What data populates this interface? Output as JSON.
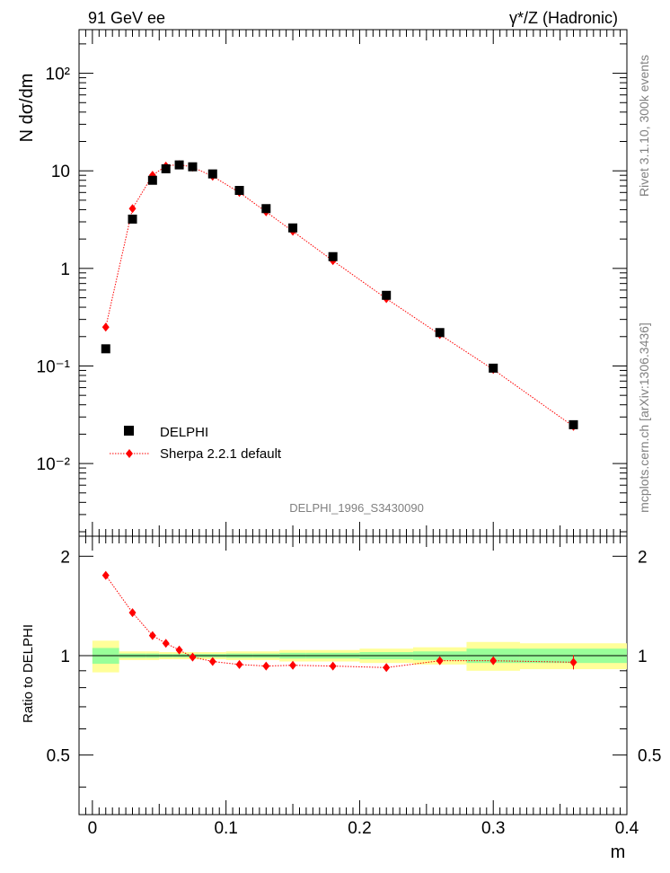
{
  "header": {
    "left": "91 GeV ee",
    "right": "γ*/Z (Hadronic)"
  },
  "side_text": {
    "rivet": "Rivet 3.1.10,  300k events",
    "mcplots": "mcplots.cern.ch [arXiv:1306.3436]"
  },
  "watermark": "DELPHI_1996_S3430090",
  "legend": {
    "data_label": "DELPHI",
    "mc_label": "Sherpa 2.2.1 default"
  },
  "colors": {
    "data": "#000000",
    "mc": "#ff0000",
    "band_inner": "#99ff99",
    "band_outer": "#ffff99"
  },
  "chart_data": [
    {
      "type": "scatter",
      "panel": "main",
      "ylabel": "N dσ/dm",
      "yscale": "log",
      "xlim": [
        -0.01,
        0.4
      ],
      "ylim": [
        0.0018,
        280
      ],
      "y_ticks": [
        {
          "v": 100,
          "label": "10²"
        },
        {
          "v": 10,
          "label": "10"
        },
        {
          "v": 1,
          "label": "1"
        },
        {
          "v": 0.1,
          "label": "10⁻¹"
        },
        {
          "v": 0.01,
          "label": "10⁻²"
        }
      ],
      "series": [
        {
          "name": "DELPHI",
          "x": [
            0.01,
            0.03,
            0.045,
            0.055,
            0.065,
            0.075,
            0.09,
            0.11,
            0.13,
            0.15,
            0.18,
            0.22,
            0.26,
            0.3,
            0.36
          ],
          "y": [
            0.15,
            3.2,
            8.0,
            10.5,
            11.5,
            11.0,
            9.3,
            6.3,
            4.1,
            2.6,
            1.32,
            0.53,
            0.22,
            0.095,
            0.025
          ]
        },
        {
          "name": "Sherpa 2.2.1 default",
          "x": [
            0.01,
            0.03,
            0.045,
            0.055,
            0.065,
            0.075,
            0.09,
            0.11,
            0.13,
            0.15,
            0.18,
            0.22,
            0.26,
            0.3,
            0.36
          ],
          "y": [
            0.25,
            4.1,
            9.0,
            11.2,
            11.6,
            10.9,
            8.8,
            6.0,
            3.8,
            2.4,
            1.2,
            0.49,
            0.21,
            0.092,
            0.024
          ]
        }
      ]
    },
    {
      "type": "scatter",
      "panel": "ratio",
      "ylabel": "Ratio to DELPHI",
      "xlabel": "m",
      "xlim": [
        -0.01,
        0.4
      ],
      "ylim": [
        0.33,
        2.3
      ],
      "x_ticks": [
        "0",
        "0.1",
        "0.2",
        "0.3",
        "0.4"
      ],
      "y_ticks": [
        "0.5",
        "1",
        "2"
      ],
      "bands": {
        "bin_edges": [
          0,
          0.02,
          0.04,
          0.05,
          0.06,
          0.07,
          0.08,
          0.1,
          0.12,
          0.14,
          0.16,
          0.2,
          0.24,
          0.28,
          0.32,
          0.4
        ],
        "inner_half": [
          0.055,
          0.015,
          0.015,
          0.012,
          0.012,
          0.012,
          0.012,
          0.015,
          0.015,
          0.02,
          0.02,
          0.025,
          0.03,
          0.05,
          0.05
        ],
        "outer_half": [
          0.11,
          0.03,
          0.03,
          0.025,
          0.025,
          0.025,
          0.025,
          0.03,
          0.03,
          0.04,
          0.04,
          0.05,
          0.06,
          0.1,
          0.09
        ]
      },
      "series": [
        {
          "name": "Sherpa 2.2.1 default",
          "x": [
            0.01,
            0.03,
            0.045,
            0.055,
            0.065,
            0.075,
            0.09,
            0.11,
            0.13,
            0.15,
            0.18,
            0.22,
            0.26,
            0.3,
            0.36
          ],
          "y": [
            1.75,
            1.35,
            1.15,
            1.09,
            1.04,
            0.99,
            0.96,
            0.94,
            0.93,
            0.935,
            0.93,
            0.92,
            0.965,
            0.965,
            0.955
          ]
        }
      ]
    }
  ]
}
